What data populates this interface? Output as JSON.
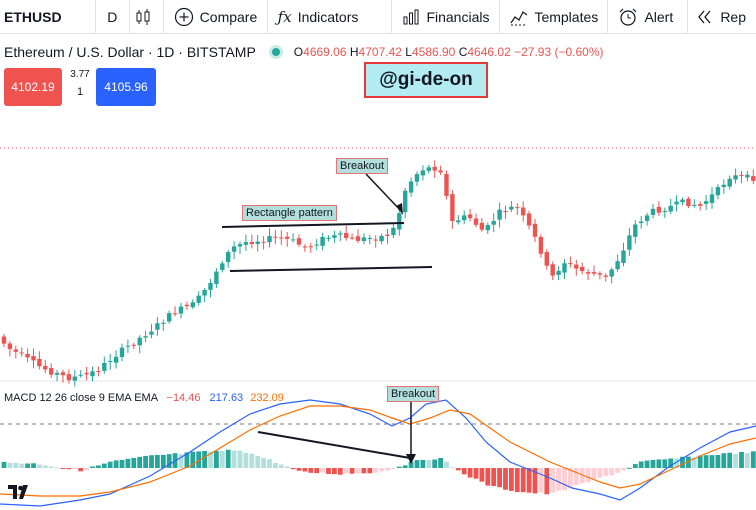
{
  "toolbar": {
    "symbol": "ETHUSD",
    "interval": "D",
    "compare": "Compare",
    "indicators": "Indicators",
    "financials": "Financials",
    "templates": "Templates",
    "alert": "Alert",
    "replay": "Rep"
  },
  "legend": {
    "name": "Ethereum / U.S. Dollar · 1D · BITSTAMP",
    "o_key": "O",
    "o": "4669.06",
    "h_key": "H",
    "h": "4707.42",
    "l_key": "L",
    "l": "4586.90",
    "c_key": "C",
    "c": "4646.02",
    "change": "−27.93 (−0.60%)"
  },
  "trade": {
    "sell": "4102.19",
    "spread_top": "3.77",
    "spread_bottom": "1",
    "buy": "4105.96"
  },
  "watermark": "@gi-de-on",
  "annotations": {
    "breakout_price": "Breakout",
    "rectangle": "Rectangle pattern",
    "breakout_macd": "Breakout"
  },
  "macd": {
    "label": "MACD 12 26 close 9 EMA EMA",
    "hist": "−14.46",
    "macd": "217.63",
    "signal": "232.09"
  },
  "colors": {
    "up": "#26a69a",
    "down": "#ef5350",
    "macd_line": "#2962ff",
    "signal_line": "#ff6d00"
  },
  "icons": {
    "chart_type": "candles-icon",
    "compare": "plus-circle-icon",
    "indicators": "fx-icon",
    "financials": "bars-icon",
    "templates": "templates-icon",
    "alert": "alarm-clock-icon",
    "replay": "rewind-icon",
    "brand": "tradingview-logo"
  }
}
